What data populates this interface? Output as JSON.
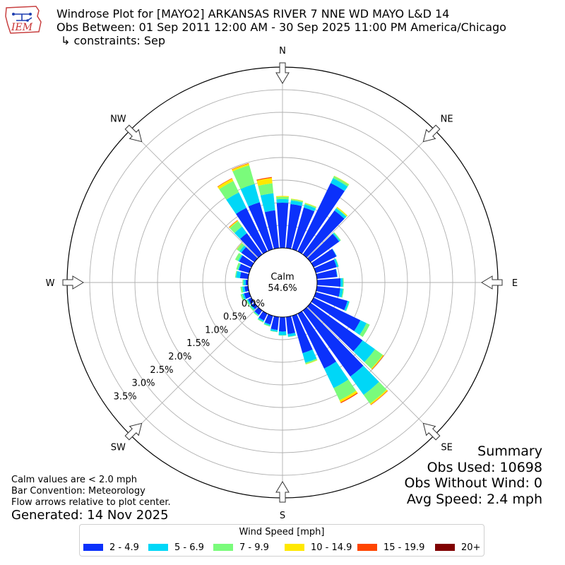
{
  "title": {
    "line1": "Windrose Plot for [MAYO2] ARKANSAS RIVER 7 NNE WD MAYO L&D 14",
    "line2": "Obs Between: 01 Sep 2011 12:00 AM - 30 Sep 2025 11:00 PM America/Chicago",
    "line3": "↳ constraints: Sep"
  },
  "logo_text": "IEM",
  "notes": {
    "calm_note": "Calm values are < 2.0 mph",
    "bar_convention": "Bar Convention: Meteorology",
    "flow_arrows": "Flow arrows relative to plot center.",
    "generated": "Generated: 14 Nov 2025"
  },
  "summary": {
    "heading": "Summary",
    "obs_used": "Obs Used: 10698",
    "obs_without_wind": "Obs Without Wind: 0",
    "avg_speed": "Avg Speed: 2.4 mph"
  },
  "colors": {
    "2 - 4.9": "#0b31fb",
    "5 - 6.9": "#00d7f7",
    "7 - 9.9": "#7afb7b",
    "10 - 14.9": "#ffe800",
    "15 - 19.9": "#ff4500",
    "20+": "#800000"
  },
  "chart_data": {
    "type": "windrose",
    "calm_label": "Calm",
    "calm_value": "54.6%",
    "direction_labels": [
      "N",
      "NE",
      "E",
      "SE",
      "S",
      "SW",
      "W",
      "NW"
    ],
    "radial_ticks": [
      "0.0%",
      "0.5%",
      "1.0%",
      "1.5%",
      "2.0%",
      "2.5%",
      "3.0%",
      "3.5%"
    ],
    "radial_values": [
      0.0,
      0.5,
      1.0,
      1.5,
      2.0,
      2.5,
      3.0,
      3.5
    ],
    "r_max": 4.0,
    "legend_title": "Wind Speed [mph]",
    "speed_bins": [
      "2 - 4.9",
      "5 - 6.9",
      "7 - 9.9",
      "10 - 14.9",
      "15 - 19.9",
      "20+"
    ],
    "directions_deg": [
      0,
      10,
      20,
      30,
      40,
      50,
      60,
      70,
      80,
      90,
      100,
      110,
      120,
      130,
      140,
      150,
      160,
      170,
      180,
      190,
      200,
      210,
      220,
      230,
      240,
      250,
      260,
      270,
      280,
      290,
      300,
      310,
      320,
      330,
      340,
      350
    ],
    "series": [
      {
        "name": "2 - 4.9",
        "values": [
          1.0,
          0.98,
          0.96,
          1.68,
          1.2,
          0.78,
          0.56,
          0.48,
          0.45,
          0.52,
          0.52,
          0.73,
          1.15,
          1.42,
          1.8,
          1.35,
          0.86,
          0.38,
          0.32,
          0.29,
          0.2,
          0.17,
          0.12,
          0.08,
          0.08,
          0.12,
          0.08,
          0.05,
          0.18,
          0.24,
          0.3,
          0.36,
          0.58,
          1.07,
          1.08,
          0.84
        ]
      },
      {
        "name": "5 - 6.9",
        "values": [
          0.08,
          0.08,
          0.07,
          0.12,
          0.06,
          0.03,
          0.01,
          0.04,
          0.01,
          0.05,
          0.06,
          0.04,
          0.15,
          0.34,
          0.5,
          0.48,
          0.22,
          0.06,
          0.08,
          0.04,
          0.03,
          0.03,
          0.02,
          0.03,
          0.03,
          0.04,
          0.05,
          0.05,
          0.09,
          0.02,
          0.03,
          0.05,
          0.18,
          0.38,
          0.42,
          0.38
        ]
      },
      {
        "name": "7 - 9.9",
        "values": [
          0.05,
          0.03,
          0.03,
          0.05,
          0.02,
          0.02,
          0.0,
          0.01,
          0.0,
          0.02,
          0.02,
          0.01,
          0.08,
          0.21,
          0.24,
          0.3,
          0.03,
          0.01,
          0.01,
          0.01,
          0.02,
          0.02,
          0.02,
          0.03,
          0.03,
          0.04,
          0.04,
          0.02,
          0.02,
          0.04,
          0.07,
          0.07,
          0.15,
          0.28,
          0.43,
          0.22
        ]
      },
      {
        "name": "10 - 14.9",
        "values": [
          0.02,
          0.01,
          0.01,
          0.01,
          0.02,
          0.0,
          0.0,
          0.0,
          0.0,
          0.0,
          0.0,
          0.0,
          0.0,
          0.02,
          0.03,
          0.05,
          0.01,
          0.0,
          0.0,
          0.0,
          0.0,
          0.0,
          0.0,
          0.0,
          0.0,
          0.0,
          0.0,
          0.0,
          0.0,
          0.0,
          0.0,
          0.01,
          0.02,
          0.06,
          0.04,
          0.12
        ]
      },
      {
        "name": "15 - 19.9",
        "values": [
          0.0,
          0.0,
          0.0,
          0.0,
          0.0,
          0.0,
          0.0,
          0.0,
          0.0,
          0.0,
          0.0,
          0.0,
          0.0,
          0.01,
          0.01,
          0.02,
          0.0,
          0.0,
          0.0,
          0.0,
          0.0,
          0.0,
          0.0,
          0.0,
          0.0,
          0.0,
          0.0,
          0.0,
          0.0,
          0.0,
          0.0,
          0.0,
          0.01,
          0.01,
          0.01,
          0.02
        ]
      },
      {
        "name": "20+",
        "values": [
          0.0,
          0.0,
          0.0,
          0.0,
          0.0,
          0.0,
          0.0,
          0.0,
          0.0,
          0.0,
          0.0,
          0.0,
          0.0,
          0.0,
          0.0,
          0.0,
          0.0,
          0.0,
          0.0,
          0.0,
          0.0,
          0.0,
          0.0,
          0.0,
          0.0,
          0.0,
          0.0,
          0.0,
          0.0,
          0.0,
          0.0,
          0.0,
          0.0,
          0.0,
          0.0,
          0.0
        ]
      }
    ],
    "grid": true
  }
}
